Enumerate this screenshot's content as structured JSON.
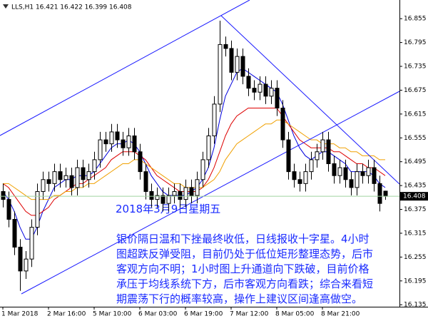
{
  "chart_data": {
    "type": "candlestick",
    "header": "LLS,H1  16.421 16.422 16.399 16.408",
    "categories": [
      "1 Mar 2018",
      null,
      null,
      null,
      null,
      null,
      null,
      null,
      "2 Mar 16:00",
      null,
      null,
      null,
      null,
      null,
      null,
      null,
      "5 Mar 10:00",
      null,
      null,
      null,
      null,
      null,
      null,
      null,
      "6 Mar 03:00",
      null,
      null,
      null,
      null,
      null,
      null,
      null,
      "6 Mar 19:00",
      null,
      null,
      null,
      null,
      null,
      null,
      null,
      "7 Mar 12:00",
      null,
      null,
      null,
      null,
      null,
      null,
      null,
      "8 Mar 05:00",
      null,
      null,
      null,
      null,
      null,
      null,
      null,
      "8 Mar 21:00",
      null,
      null,
      null,
      null,
      null,
      null,
      null,
      null,
      null,
      null,
      null
    ],
    "open": [
      16.42,
      16.4,
      16.35,
      16.28,
      16.22,
      16.25,
      16.33,
      16.42,
      16.45,
      16.44,
      16.47,
      16.45,
      16.46,
      16.43,
      16.48,
      16.45,
      16.47,
      16.5,
      16.55,
      16.54,
      16.57,
      16.55,
      16.53,
      16.56,
      16.52,
      16.47,
      16.42,
      16.4,
      16.41,
      16.39,
      16.41,
      16.42,
      16.4,
      16.43,
      16.41,
      16.45,
      16.5,
      16.56,
      16.64,
      16.79,
      16.78,
      16.72,
      16.76,
      16.71,
      16.68,
      16.67,
      16.69,
      16.66,
      16.68,
      16.63,
      16.55,
      16.47,
      16.45,
      16.44,
      16.47,
      16.5,
      16.52,
      16.55,
      16.49,
      16.46,
      16.48,
      16.45,
      16.43,
      16.47,
      16.46,
      16.48,
      16.44,
      16.421
    ],
    "high": [
      16.44,
      16.42,
      16.37,
      16.3,
      16.27,
      16.35,
      16.44,
      16.47,
      16.47,
      16.49,
      16.49,
      16.48,
      16.48,
      16.5,
      16.5,
      16.49,
      16.52,
      16.57,
      16.57,
      16.59,
      16.59,
      16.57,
      16.58,
      16.58,
      16.54,
      16.49,
      16.44,
      16.43,
      16.43,
      16.43,
      16.44,
      16.44,
      16.45,
      16.45,
      16.47,
      16.52,
      16.58,
      16.66,
      16.85,
      16.81,
      16.8,
      16.78,
      16.78,
      16.73,
      16.7,
      16.71,
      16.71,
      16.7,
      16.7,
      16.65,
      16.57,
      16.49,
      16.47,
      16.49,
      16.52,
      16.54,
      16.57,
      16.57,
      16.51,
      16.5,
      16.5,
      16.47,
      16.49,
      16.49,
      16.5,
      16.5,
      16.46,
      16.422
    ],
    "low": [
      16.38,
      16.33,
      16.26,
      16.17,
      16.2,
      16.23,
      16.31,
      16.4,
      16.42,
      16.42,
      16.43,
      16.43,
      16.41,
      16.41,
      16.43,
      16.43,
      16.45,
      16.48,
      16.52,
      16.52,
      16.53,
      16.51,
      16.51,
      16.5,
      16.45,
      16.4,
      16.38,
      16.38,
      16.37,
      16.37,
      16.39,
      16.38,
      16.38,
      16.39,
      16.39,
      16.43,
      16.48,
      16.54,
      16.62,
      16.76,
      16.7,
      16.7,
      16.69,
      16.66,
      16.65,
      16.65,
      16.64,
      16.64,
      16.61,
      16.53,
      16.45,
      16.43,
      16.42,
      16.42,
      16.45,
      16.48,
      16.5,
      16.47,
      16.44,
      16.44,
      16.43,
      16.41,
      16.41,
      16.44,
      16.44,
      16.42,
      16.37,
      16.399
    ],
    "close": [
      16.4,
      16.35,
      16.28,
      16.22,
      16.25,
      16.33,
      16.42,
      16.45,
      16.44,
      16.47,
      16.45,
      16.46,
      16.43,
      16.48,
      16.45,
      16.47,
      16.5,
      16.55,
      16.54,
      16.57,
      16.55,
      16.53,
      16.56,
      16.52,
      16.47,
      16.42,
      16.4,
      16.41,
      16.39,
      16.41,
      16.42,
      16.4,
      16.43,
      16.41,
      16.45,
      16.5,
      16.56,
      16.64,
      16.79,
      16.78,
      16.72,
      16.76,
      16.71,
      16.68,
      16.67,
      16.69,
      16.66,
      16.68,
      16.63,
      16.55,
      16.47,
      16.45,
      16.44,
      16.47,
      16.5,
      16.52,
      16.55,
      16.49,
      16.46,
      16.48,
      16.45,
      16.43,
      16.47,
      16.46,
      16.48,
      16.44,
      16.39,
      16.408
    ],
    "series": [
      {
        "color": "#0000dd",
        "values": [
          16.42,
          16.4,
          16.37,
          16.33,
          16.3,
          16.3,
          16.33,
          16.37,
          16.4,
          16.43,
          16.44,
          16.45,
          16.45,
          16.46,
          16.46,
          16.46,
          16.47,
          16.49,
          16.51,
          16.53,
          16.54,
          16.54,
          16.55,
          16.54,
          16.52,
          16.49,
          16.46,
          16.44,
          16.42,
          16.41,
          16.41,
          16.41,
          16.41,
          16.42,
          16.43,
          16.45,
          16.48,
          16.53,
          16.6,
          16.66,
          16.69,
          16.72,
          16.73,
          16.72,
          16.71,
          16.7,
          16.69,
          16.68,
          16.67,
          16.64,
          16.6,
          16.56,
          16.53,
          16.51,
          16.5,
          16.51,
          16.52,
          16.52,
          16.51,
          16.5,
          16.49,
          16.47,
          16.47,
          16.47,
          16.47,
          16.46,
          16.44,
          16.43
        ]
      },
      {
        "color": "#dd0000",
        "values": [
          16.44,
          16.43,
          16.41,
          16.39,
          16.37,
          16.36,
          16.36,
          16.37,
          16.38,
          16.4,
          16.41,
          16.42,
          16.43,
          16.44,
          16.44,
          16.45,
          16.46,
          16.47,
          16.48,
          16.5,
          16.51,
          16.52,
          16.52,
          16.52,
          16.51,
          16.5,
          16.48,
          16.46,
          16.45,
          16.44,
          16.43,
          16.42,
          16.42,
          16.42,
          16.42,
          16.43,
          16.45,
          16.48,
          16.52,
          16.56,
          16.59,
          16.61,
          16.62,
          16.63,
          16.63,
          16.63,
          16.63,
          16.63,
          16.63,
          16.61,
          16.59,
          16.57,
          16.55,
          16.54,
          16.53,
          16.53,
          16.53,
          16.53,
          16.52,
          16.52,
          16.51,
          16.5,
          16.49,
          16.49,
          16.48,
          16.48,
          16.47,
          16.46
        ]
      },
      {
        "color": "#f0a000",
        "values": [
          16.44,
          16.44,
          16.43,
          16.42,
          16.41,
          16.4,
          16.4,
          16.4,
          16.4,
          16.41,
          16.41,
          16.42,
          16.42,
          16.43,
          16.43,
          16.44,
          16.44,
          16.45,
          16.46,
          16.47,
          16.48,
          16.49,
          16.49,
          16.5,
          16.5,
          16.49,
          16.48,
          16.47,
          16.46,
          16.45,
          16.44,
          16.44,
          16.43,
          16.43,
          16.43,
          16.43,
          16.44,
          16.45,
          16.47,
          16.5,
          16.52,
          16.54,
          16.55,
          16.56,
          16.57,
          16.58,
          16.59,
          16.59,
          16.6,
          16.6,
          16.59,
          16.58,
          16.57,
          16.56,
          16.55,
          16.55,
          16.54,
          16.54,
          16.54,
          16.53,
          16.53,
          16.52,
          16.52,
          16.51,
          16.51,
          16.51,
          16.5,
          16.5
        ]
      }
    ],
    "ylim": [
      16.902,
      16.13
    ],
    "yticks": [
      16.855,
      16.795,
      16.735,
      16.675,
      16.615,
      16.555,
      16.495,
      16.435,
      16.375,
      16.315,
      16.255,
      16.195,
      16.135
    ],
    "date_label": "2018年3月9日星期五",
    "commentary": [
      "银价隔日温和下挫最终收低，日线报收十字星。4小时",
      "图超跌反弹受阻，目前仍处于低位矩形整理态势，后市",
      "客观方向不明；1小时图上升通道向下跌破，目前价格",
      "承压于均线系统下方，后市客观方向看跌；综合来看短",
      "期震荡下行的概率较高，操作上建议区间逢高做空。"
    ]
  }
}
